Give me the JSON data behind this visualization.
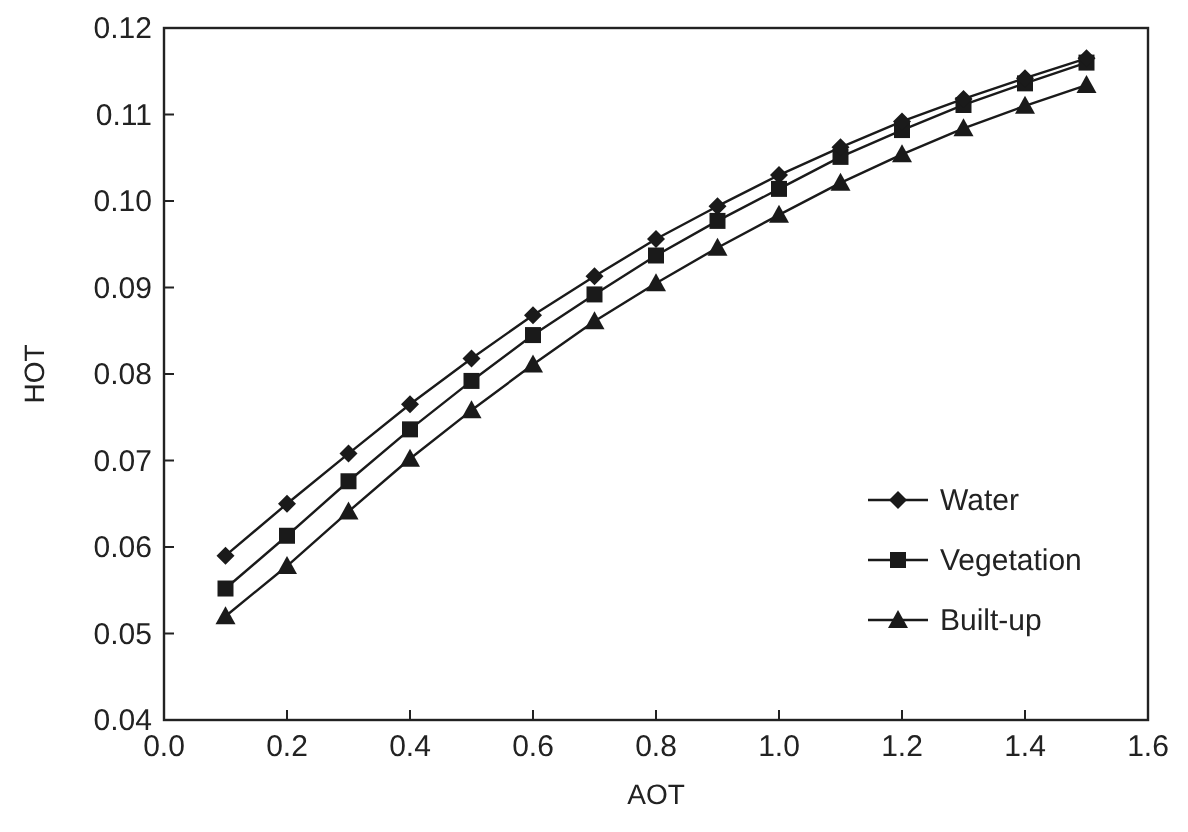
{
  "chart_data": {
    "type": "line",
    "xlabel": "AOT",
    "ylabel": "HOT",
    "x": [
      0.1,
      0.2,
      0.3,
      0.4,
      0.5,
      0.6,
      0.7,
      0.8,
      0.9,
      1.0,
      1.1,
      1.2,
      1.3,
      1.4,
      1.5
    ],
    "xlim": [
      0,
      1.6
    ],
    "xticks": [
      {
        "value": 0,
        "label": "0.0"
      },
      0.2,
      0.4,
      0.6,
      0.8,
      {
        "value": 1,
        "label": "1.0"
      },
      1.2,
      1.4,
      1.6
    ],
    "ylim": [
      0.04,
      0.12
    ],
    "yticks": [
      0.04,
      0.05,
      0.06,
      0.07,
      0.08,
      0.09,
      {
        "value": 0.1,
        "label": "0.10"
      },
      0.11,
      0.12
    ],
    "grid": false,
    "legend": "bottom right",
    "line_style": "solid",
    "series": [
      {
        "name": "Water",
        "color": "#1a1a1a",
        "marker": "diamond",
        "values": [
          0.059,
          0.065,
          0.0708,
          0.0765,
          0.0818,
          0.0868,
          0.0913,
          0.0956,
          0.0994,
          0.103,
          0.1062,
          0.1092,
          0.1118,
          0.1142,
          0.1165
        ]
      },
      {
        "name": "Vegetation",
        "color": "#1a1a1a",
        "marker": "square",
        "values": [
          0.0552,
          0.0613,
          0.0676,
          0.0736,
          0.0792,
          0.0845,
          0.0892,
          0.0937,
          0.0977,
          0.1014,
          0.1051,
          0.1082,
          0.1111,
          0.1136,
          0.116
        ]
      },
      {
        "name": "Built-up",
        "color": "#1a1a1a",
        "marker": "triangle",
        "values": [
          0.052,
          0.0578,
          0.0641,
          0.0702,
          0.0758,
          0.0811,
          0.0861,
          0.0905,
          0.0946,
          0.0984,
          0.1021,
          0.1054,
          0.1084,
          0.111,
          0.1134
        ]
      }
    ]
  }
}
